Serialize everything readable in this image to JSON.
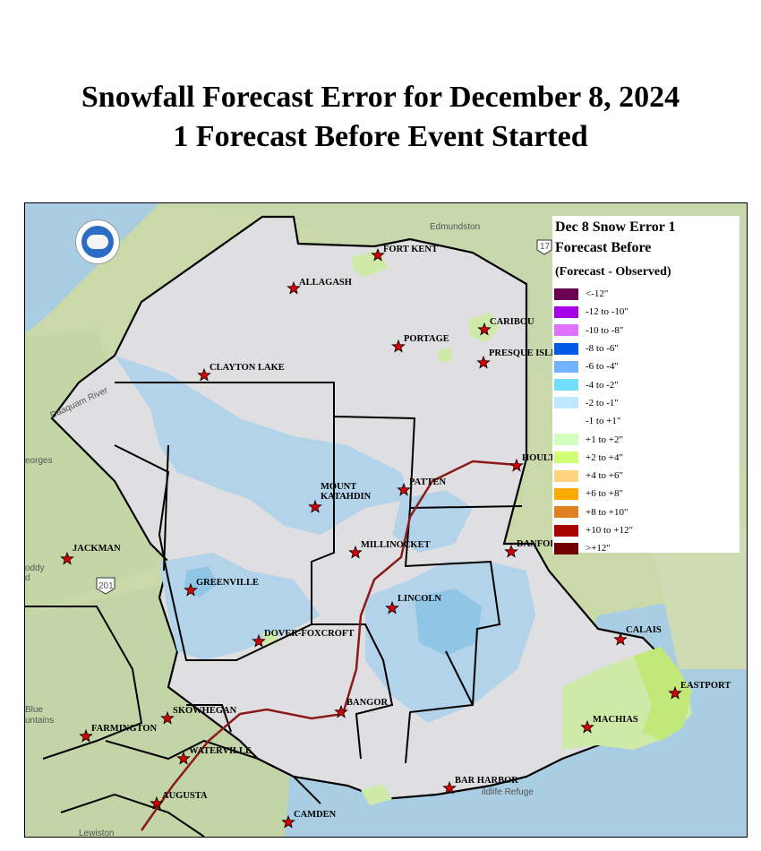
{
  "title": {
    "line1": "Snowfall Forecast Error for December 8, 2024",
    "line2": "1 Forecast Before Event Started"
  },
  "legend": {
    "title_line1": "Dec 8 Snow Error 1",
    "title_line2": "Forecast Before",
    "subtitle": "(Forecast - Observed)",
    "items": [
      {
        "label": "<-12\"",
        "color": "#6b0052"
      },
      {
        "label": "-12 to -10\"",
        "color": "#a600e6"
      },
      {
        "label": "-10 to -8\"",
        "color": "#df73ff"
      },
      {
        "label": "-8 to -6\"",
        "color": "#005ce6"
      },
      {
        "label": "-6 to -4\"",
        "color": "#73b2ff"
      },
      {
        "label": "-4 to -2\"",
        "color": "#73dfff"
      },
      {
        "label": "-2 to -1\"",
        "color": "#bee8ff"
      },
      {
        "label": "-1 to +1\"",
        "color": "#ffffff"
      },
      {
        "label": "+1 to +2\"",
        "color": "#d3ffbe"
      },
      {
        "label": "+2 to +4\"",
        "color": "#d1ff73"
      },
      {
        "label": "+4 to +6\"",
        "color": "#ffd37f"
      },
      {
        "label": "+6 to +8\"",
        "color": "#ffaa00"
      },
      {
        "label": "+8 to +10\"",
        "color": "#e08020"
      },
      {
        "label": "+10 to +12\"",
        "color": "#a80000"
      },
      {
        "label": ">+12\"",
        "color": "#730000"
      }
    ]
  },
  "basemap_labels": {
    "edmundston": "Edmundston",
    "highway_17": "17",
    "highway_201": "201",
    "daaquam_river": "Daaquam River",
    "georges": "eorges",
    "blue_mountains_1": "Blue",
    "blue_mountains_2": "untains",
    "lewiston": "Lewiston",
    "wildlife_refuge": "ildlife Refuge",
    "woody": "oddy",
    "woody2": "d"
  },
  "cities": [
    {
      "name": "FORT KENT"
    },
    {
      "name": "ALLAGASH"
    },
    {
      "name": "CARIBOU"
    },
    {
      "name": "PORTAGE"
    },
    {
      "name": "PRESQUE ISLE"
    },
    {
      "name": "CLAYTON LAKE"
    },
    {
      "name": "HOULTON"
    },
    {
      "name": "PATTEN"
    },
    {
      "name": "MOUNT"
    },
    {
      "name": "KATAHDIN"
    },
    {
      "name": "MILLINOCKET"
    },
    {
      "name": "DANFORTH"
    },
    {
      "name": "JACKMAN"
    },
    {
      "name": "GREENVILLE"
    },
    {
      "name": "LINCOLN"
    },
    {
      "name": "DOVER-FOXCROFT"
    },
    {
      "name": "CALAIS"
    },
    {
      "name": "EASTPORT"
    },
    {
      "name": "BANGOR"
    },
    {
      "name": "MACHIAS"
    },
    {
      "name": "SKOWHEGAN"
    },
    {
      "name": "FARMINGTON"
    },
    {
      "name": "WATERVILLE"
    },
    {
      "name": "BAR HARBOR"
    },
    {
      "name": "AUGUSTA"
    },
    {
      "name": "CAMDEN"
    }
  ]
}
